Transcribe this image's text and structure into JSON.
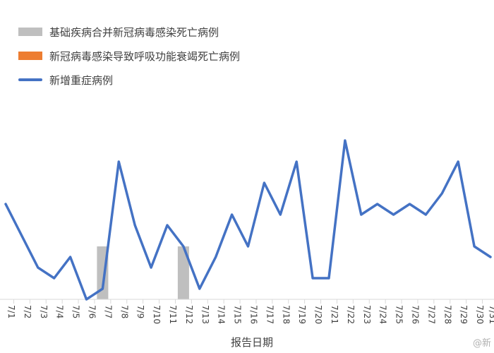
{
  "chart_data": {
    "type": "line",
    "xlabel": "报告日期",
    "ylabel": "",
    "categories": [
      "7/1",
      "7/2",
      "7/3",
      "7/4",
      "7/5",
      "7/6",
      "7/7",
      "7/8",
      "7/9",
      "7/10",
      "7/11",
      "7/12",
      "7/13",
      "7/14",
      "7/15",
      "7/16",
      "7/17",
      "7/18",
      "7/19",
      "7/20",
      "7/21",
      "7/22",
      "7/23",
      "7/24",
      "7/25",
      "7/26",
      "7/27",
      "7/28",
      "7/29",
      "7/30",
      "7/31"
    ],
    "ylim": [
      0,
      16
    ],
    "legend_position": "top-left",
    "grid": false,
    "series": [
      {
        "name": "基础疾病合并新冠病毒感染死亡病例",
        "type": "bar",
        "color": "#bfbfbf",
        "values": [
          0,
          0,
          0,
          0,
          0,
          0,
          5,
          0,
          0,
          0,
          0,
          5,
          0,
          0,
          0,
          0,
          0,
          0,
          0,
          0,
          0,
          0,
          0,
          0,
          0,
          0,
          0,
          0,
          0,
          0,
          0
        ]
      },
      {
        "name": "新冠病毒感染导致呼吸功能衰竭死亡病例",
        "type": "bar",
        "color": "#ed7d31",
        "values": [
          0,
          0,
          0,
          0,
          0,
          0,
          0,
          0,
          0,
          0,
          0,
          0,
          0,
          0,
          0,
          0,
          0,
          0,
          0,
          0,
          0,
          0,
          0,
          0,
          0,
          0,
          0,
          0,
          0,
          0,
          0
        ]
      },
      {
        "name": "新增重症病例",
        "type": "line",
        "color": "#4472c4",
        "values": [
          9,
          6,
          3,
          2,
          4,
          0,
          1,
          13,
          7,
          3,
          7,
          5,
          1,
          4,
          8,
          5,
          11,
          8,
          13,
          2,
          2,
          15,
          8,
          9,
          8,
          9,
          8,
          10,
          13,
          5,
          4
        ]
      }
    ]
  },
  "watermark": "@新"
}
